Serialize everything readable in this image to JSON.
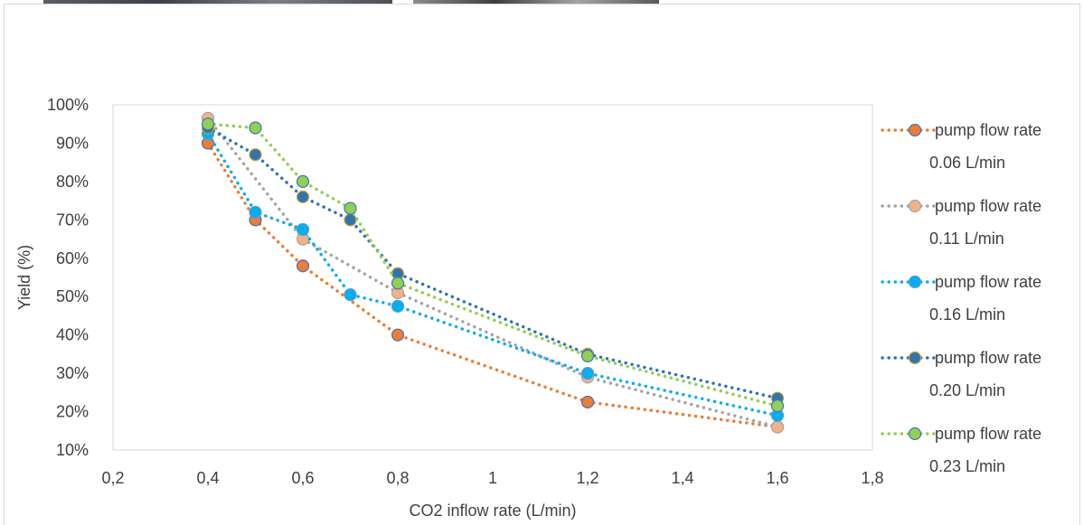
{
  "chart_data": {
    "type": "line",
    "title": "",
    "xlabel": "CO2 inflow rate (L/min)",
    "ylabel": "Yield (%)",
    "xlim": [
      0.2,
      1.8
    ],
    "ylim": [
      10,
      100
    ],
    "x_ticks": [
      "0,2",
      "0,4",
      "0,6",
      "0,8",
      "1",
      "1,2",
      "1,4",
      "1,6",
      "1,8"
    ],
    "y_ticks": [
      "10%",
      "20%",
      "30%",
      "40%",
      "50%",
      "60%",
      "70%",
      "80%",
      "90%",
      "100%"
    ],
    "grid": false,
    "line_style": "dotted",
    "legend_position": "right",
    "series": [
      {
        "name": "pump flow rate 0.06 L/min",
        "legend_lines": [
          "pump flow rate",
          "0.06 L/min"
        ],
        "color": "#ed7d31",
        "marker_fill": "#ed7d31",
        "marker_edge": "#4472c4",
        "x": [
          0.4,
          0.5,
          0.6,
          0.8,
          1.2,
          1.6
        ],
        "y": [
          90,
          70,
          58,
          40,
          22.5,
          16
        ]
      },
      {
        "name": "pump flow rate 0.11 L/min",
        "legend_lines": [
          "pump flow rate",
          "0.11 L/min"
        ],
        "color": "#a5a5a5",
        "marker_fill": "#f4b183",
        "marker_edge": "#a5a5a5",
        "x": [
          0.4,
          0.6,
          0.8,
          1.2,
          1.6
        ],
        "y": [
          96.5,
          65,
          51,
          29,
          16
        ]
      },
      {
        "name": "pump flow rate 0.16 L/min",
        "legend_lines": [
          "pump flow rate",
          "0.16 L/min"
        ],
        "color": "#00b0f0",
        "marker_fill": "#00b0f0",
        "marker_edge": "#5b9bd5",
        "x": [
          0.4,
          0.5,
          0.6,
          0.7,
          0.8,
          1.2,
          1.6
        ],
        "y": [
          92.5,
          72,
          67.5,
          50.5,
          47.5,
          30,
          19
        ]
      },
      {
        "name": "pump flow rate 0.20 L/min",
        "legend_lines": [
          "pump flow rate",
          "0.20 L/min"
        ],
        "color": "#2e75b6",
        "marker_fill": "#2e75b6",
        "marker_edge": "#c9a227",
        "x": [
          0.4,
          0.5,
          0.6,
          0.7,
          0.8,
          1.2,
          1.6
        ],
        "y": [
          94,
          87,
          76,
          70,
          56,
          35,
          23.5
        ]
      },
      {
        "name": "pump flow rate 0.23 L/min",
        "legend_lines": [
          "pump flow rate",
          "0.23 L/min"
        ],
        "color": "#92d050",
        "marker_fill": "#92d050",
        "marker_edge": "#4472c4",
        "x": [
          0.4,
          0.5,
          0.6,
          0.7,
          0.8,
          1.2,
          1.6
        ],
        "y": [
          95,
          94,
          80,
          73,
          53.5,
          34.5,
          21.5
        ]
      }
    ]
  }
}
